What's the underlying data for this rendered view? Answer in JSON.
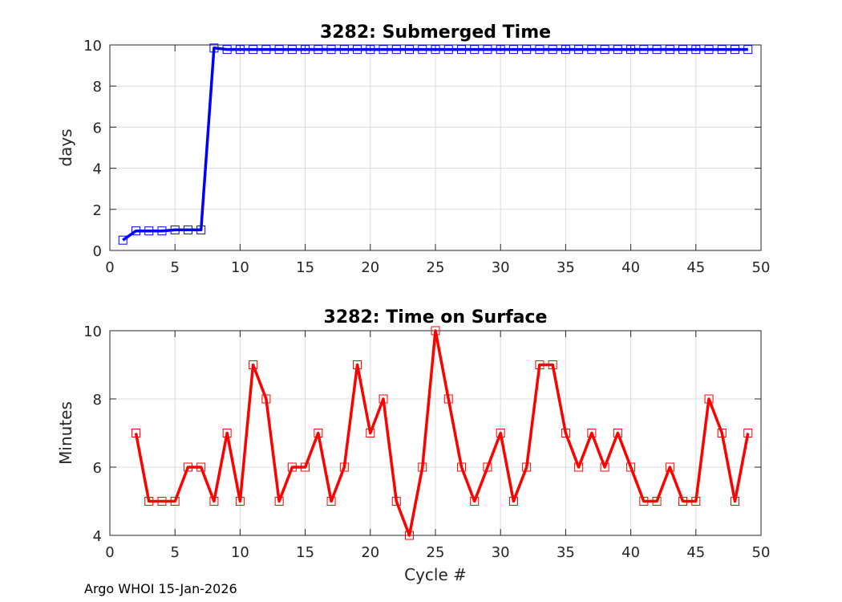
{
  "chart_data": [
    {
      "type": "line",
      "title": "3282: Submerged Time",
      "xlabel": "",
      "ylabel": "days",
      "xlim": [
        0,
        50
      ],
      "ylim": [
        0,
        10
      ],
      "xticks": [
        0,
        5,
        10,
        15,
        20,
        25,
        30,
        35,
        40,
        45,
        50
      ],
      "yticks": [
        0,
        2,
        4,
        6,
        8,
        10
      ],
      "grid": true,
      "color": "#0000ff",
      "marker": "square",
      "series": [
        {
          "name": "Submerged Time",
          "x": [
            1,
            2,
            3,
            4,
            5,
            6,
            7,
            8,
            9,
            10,
            11,
            12,
            13,
            14,
            15,
            16,
            17,
            18,
            19,
            20,
            21,
            22,
            23,
            24,
            25,
            26,
            27,
            28,
            29,
            30,
            31,
            32,
            33,
            34,
            35,
            36,
            37,
            38,
            39,
            40,
            41,
            42,
            43,
            44,
            45,
            46,
            47,
            48,
            49
          ],
          "values": [
            0.5,
            0.95,
            0.95,
            0.95,
            1.0,
            1.0,
            1.0,
            9.85,
            9.78,
            9.78,
            9.78,
            9.78,
            9.78,
            9.78,
            9.78,
            9.78,
            9.78,
            9.78,
            9.78,
            9.78,
            9.78,
            9.78,
            9.78,
            9.78,
            9.78,
            9.78,
            9.78,
            9.78,
            9.78,
            9.78,
            9.78,
            9.78,
            9.78,
            9.78,
            9.78,
            9.78,
            9.78,
            9.78,
            9.78,
            9.78,
            9.78,
            9.78,
            9.78,
            9.78,
            9.78,
            9.78,
            9.78,
            9.78,
            9.78
          ]
        }
      ]
    },
    {
      "type": "line",
      "title": "3282: Time on Surface",
      "xlabel": "Cycle #",
      "ylabel": "Minutes",
      "xlim": [
        0,
        50
      ],
      "ylim": [
        4,
        10
      ],
      "xticks": [
        0,
        5,
        10,
        15,
        20,
        25,
        30,
        35,
        40,
        45,
        50
      ],
      "yticks": [
        4,
        6,
        8,
        10
      ],
      "grid": true,
      "color": "#ff0000",
      "marker": "square",
      "series": [
        {
          "name": "Time on Surface",
          "x": [
            2,
            3,
            4,
            5,
            6,
            7,
            8,
            9,
            10,
            11,
            12,
            13,
            14,
            15,
            16,
            17,
            18,
            19,
            20,
            21,
            22,
            23,
            24,
            25,
            26,
            27,
            28,
            29,
            30,
            31,
            32,
            33,
            34,
            35,
            36,
            37,
            38,
            39,
            40,
            41,
            42,
            43,
            44,
            45,
            46,
            47,
            48,
            49
          ],
          "values": [
            7,
            5,
            5,
            5,
            6,
            6,
            5,
            7,
            5,
            9,
            8,
            5,
            6,
            6,
            7,
            5,
            6,
            9,
            7,
            8,
            5,
            4,
            6,
            10,
            8,
            6,
            5,
            6,
            7,
            5,
            6,
            9,
            9,
            7,
            6,
            7,
            6,
            7,
            6,
            5,
            5,
            6,
            5,
            5,
            8,
            7,
            5,
            7
          ]
        }
      ]
    }
  ],
  "footer": "Argo WHOI 15-Jan-2026"
}
